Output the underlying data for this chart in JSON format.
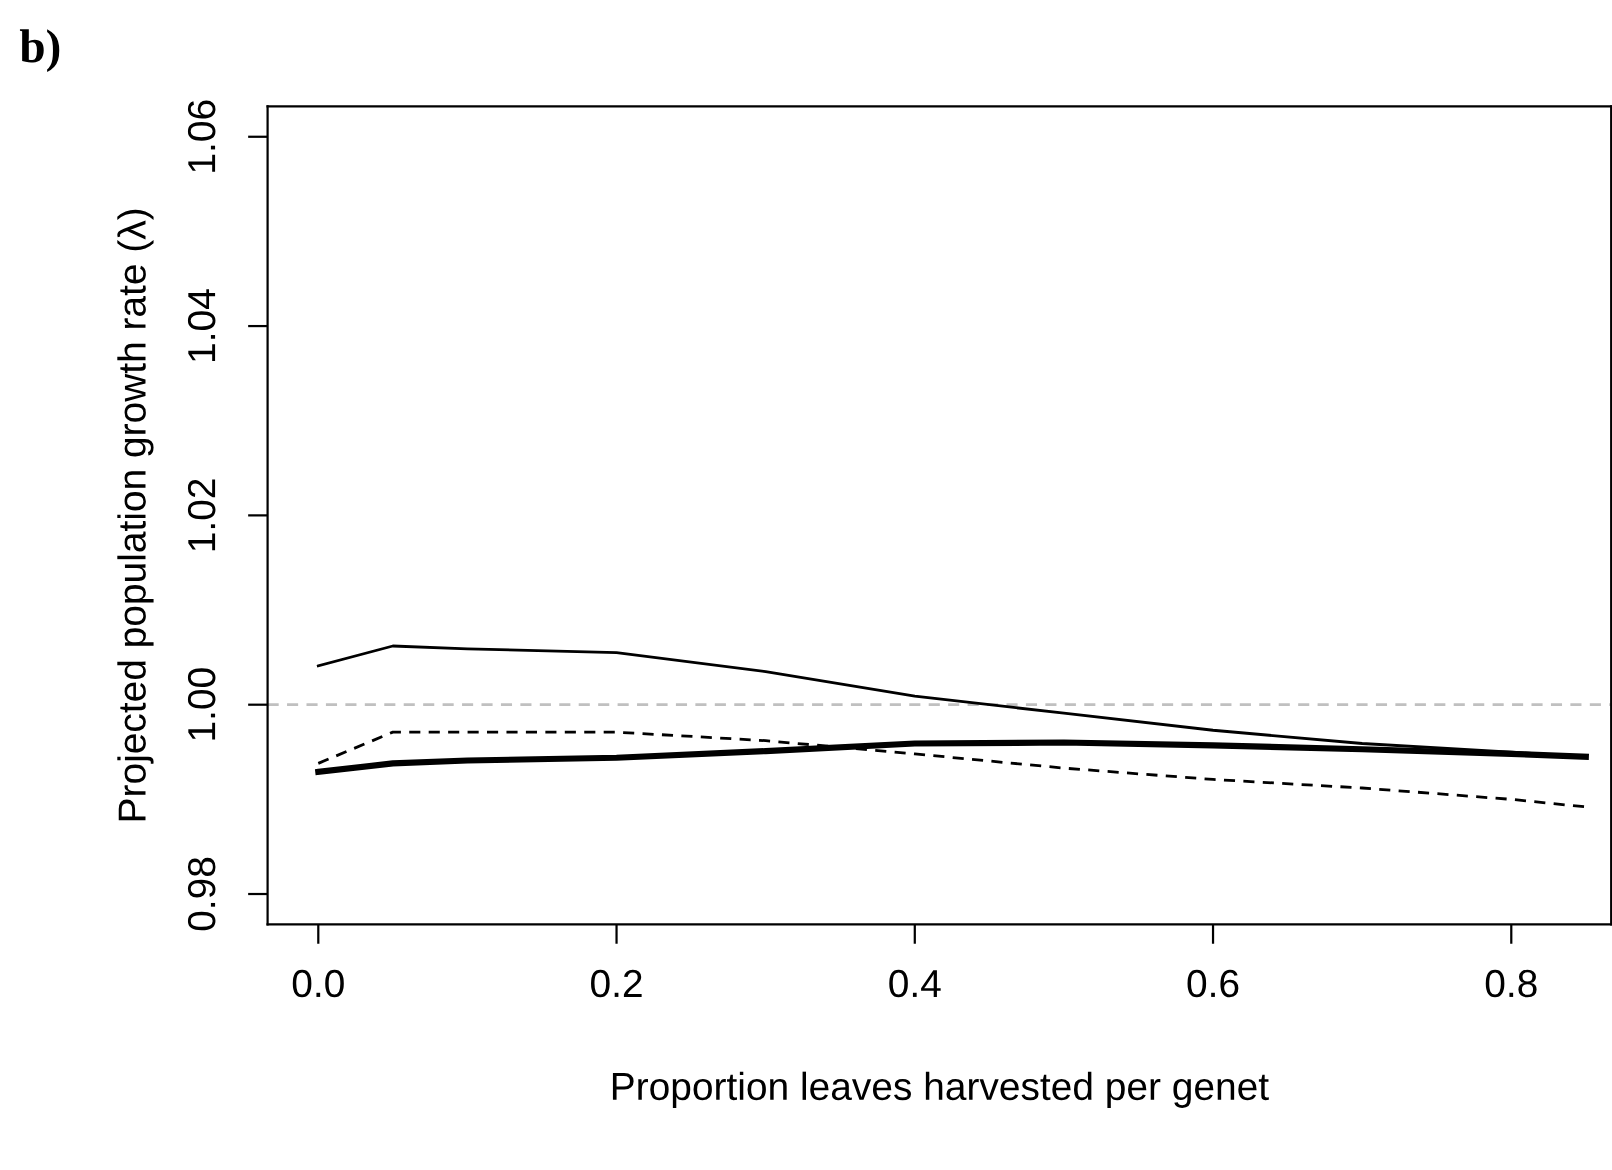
{
  "chart_data": {
    "type": "line",
    "title": "b)",
    "xlabel": "Proportion leaves harvested per genet",
    "ylabel": "Projected population growth rate (λ)",
    "x": [
      0,
      0.05,
      0.1,
      0.2,
      0.3,
      0.4,
      0.5,
      0.6,
      0.7,
      0.8,
      0.85
    ],
    "series": [
      {
        "color": "#000000",
        "line_style": "solid",
        "values": [
          1.0041,
          1.0062,
          1.0059,
          1.0055,
          1.0035,
          1.0009,
          0.9991,
          0.9973,
          0.9959,
          0.995,
          0.9945
        ]
      },
      {
        "color": "#000000",
        "line_style": "dashed",
        "values": [
          0.9938,
          0.9971,
          0.9971,
          0.9971,
          0.9962,
          0.9948,
          0.9933,
          0.9921,
          0.9912,
          0.99,
          0.9892
        ]
      },
      {
        "color": "#000000",
        "line_style": "solid",
        "values": [
          0.9929,
          0.9938,
          0.9941,
          0.9944,
          0.9951,
          0.9959,
          0.996,
          0.9957,
          0.9953,
          0.9948,
          0.9945
        ]
      }
    ],
    "xlim": [
      -0.034,
      0.867
    ],
    "xticks": [
      {
        "value": 0,
        "label": "0.0"
      },
      0.2,
      0.4,
      0.6,
      0.8
    ],
    "ylim": [
      0.9768,
      1.0632
    ],
    "yticks": [
      0.98,
      {
        "value": 1.0,
        "label": "1.00"
      },
      1.02,
      1.04,
      1.06
    ],
    "ref_lines": [
      {
        "axis": "y",
        "value": 1.0,
        "color": "#c0c0c0",
        "line_style": "dashed"
      }
    ],
    "grid": false,
    "legend": false,
    "marker": "none"
  }
}
